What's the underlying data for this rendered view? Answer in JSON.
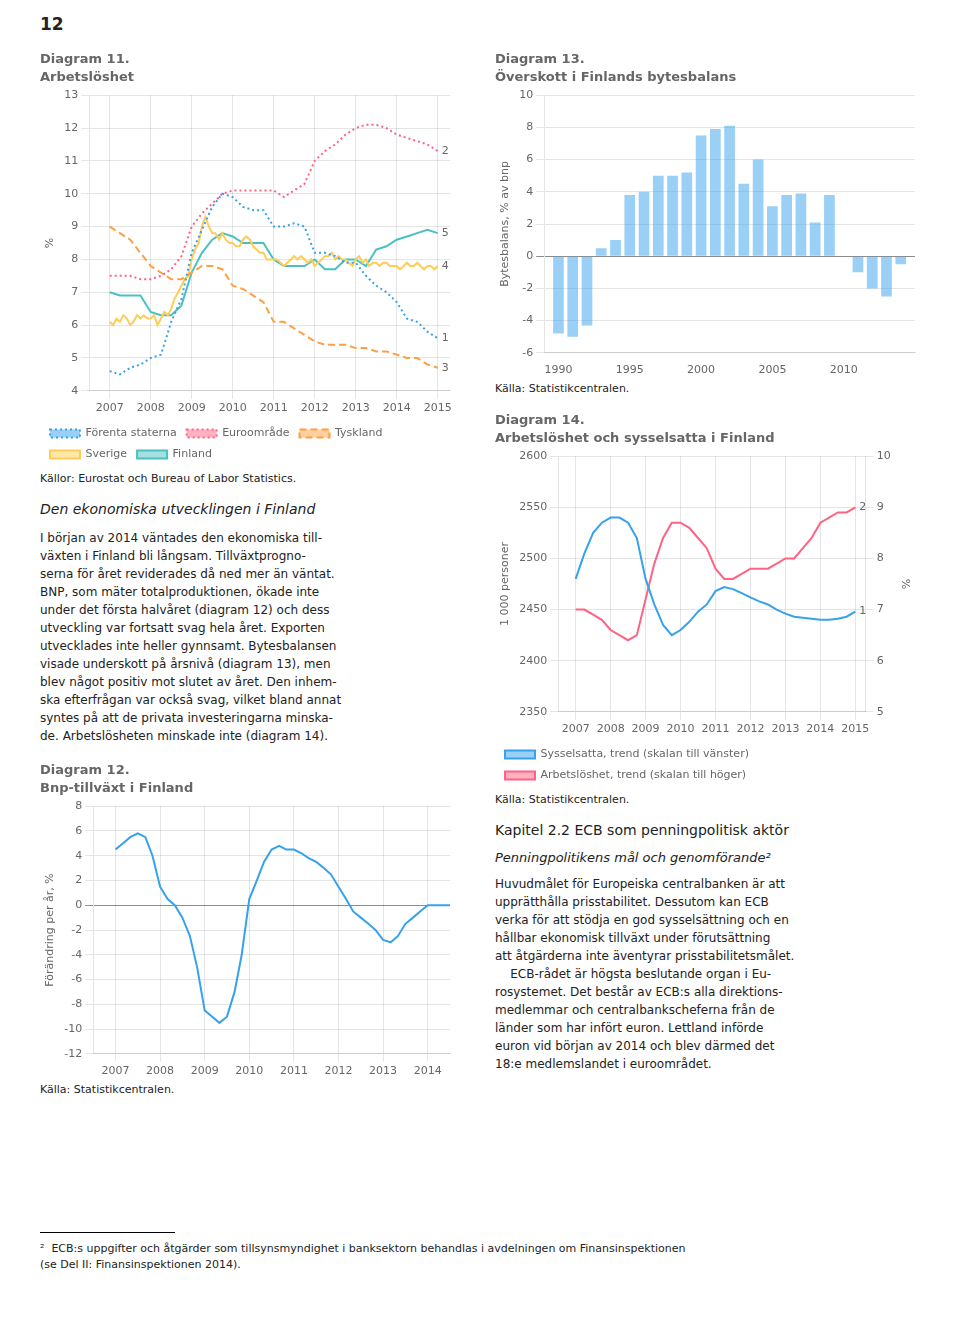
{
  "page": {
    "page_number": "12",
    "section_title": "Den ekonomiska utvecklingen i Finland",
    "body_left": [
      "I början av 2014 väntades den ekonomiska till-",
      "växten i Finland bli långsam. Tillväxtprogno-",
      "serna för året reviderades då ned mer än väntat.",
      "BNP, som mäter totalproduktionen, ökade inte",
      "under det första halvåret (diagram 12) och dess",
      "utveckling var fortsatt svag hela året. Exporten",
      "utvecklades inte heller gynnsamt. Bytesbalansen",
      "visade underskott på årsnivå (diagram 13), men",
      "blev något positiv mot slutet av året. Den inhem-",
      "ska efterfrågan var också svag, vilket bland annat",
      "syntes på att de privata investeringarna minska-",
      "de. Arbetslösheten minskade inte (diagram 14)."
    ],
    "chapter_title": "Kapitel 2.2 ECB som penningpolitisk aktör",
    "italic_title": "Penningpolitikens mål och genomförande²",
    "body_right": [
      "Huvudmålet för Europeiska centralbanken är att",
      "upprätthålla prisstabilitet. Dessutom kan ECB",
      "verka för att stödja en god sysselsättning och en",
      "hållbar ekonomisk tillväxt under förutsättning",
      "att åtgärderna inte äventyrar prisstabilitetsmålet.",
      "    ECB-rådet är högsta beslutande organ i Eu-",
      "rosystemet. Det består av ECB:s alla direktions-",
      "medlemmar och centralbankscheferna från de",
      "länder som har infört euron. Lettland införde",
      "euron vid början av 2014 och blev därmed det",
      "18:e medlemslandet i euroområdet."
    ],
    "footnote": [
      "²  ECB:s uppgifter och åtgärder som tillsynsmyndighet i banksektorn behandlas i avdelningen om Finansinspektionen",
      "(se Del II: Finansinspektionen 2014)."
    ]
  },
  "chart_data": [
    {
      "type": "line",
      "title": "Diagram 11.",
      "subtitle": "Arbetslöshet",
      "ylabel": "%",
      "source": "Källor: Eurostat och Bureau of Labor Statistics.",
      "xlim": [
        2006.5,
        2015.3
      ],
      "xticks": [
        2007,
        2008,
        2009,
        2010,
        2011,
        2012,
        2013,
        2014,
        2015
      ],
      "ylim": [
        4,
        13
      ],
      "yticks": [
        4,
        5,
        6,
        7,
        8,
        9,
        10,
        11,
        12,
        13
      ],
      "grid": true,
      "legend": "bottom",
      "series": [
        {
          "name": "Förenta staterna",
          "line_style": "dotted",
          "x": [
            2007,
            2007.25,
            2007.5,
            2007.75,
            2008,
            2008.25,
            2008.5,
            2008.75,
            2009,
            2009.25,
            2009.5,
            2009.75,
            2010,
            2010.25,
            2010.5,
            2010.75,
            2011,
            2011.25,
            2011.5,
            2011.75,
            2012,
            2012.25,
            2012.5,
            2012.75,
            2013,
            2013.25,
            2013.5,
            2013.75,
            2014,
            2014.25,
            2014.5,
            2014.75,
            2015
          ],
          "values": [
            4.6,
            4.5,
            4.7,
            4.8,
            5.0,
            5.1,
            6.1,
            6.8,
            8.2,
            8.9,
            9.6,
            10.0,
            9.9,
            9.6,
            9.5,
            9.5,
            9.0,
            9.0,
            9.1,
            9.0,
            8.2,
            8.2,
            8.1,
            7.9,
            7.9,
            7.5,
            7.2,
            7.0,
            6.7,
            6.2,
            6.1,
            5.8,
            5.6
          ]
        },
        {
          "name": "Euroområde",
          "line_style": "dotted",
          "x": [
            2007,
            2007.25,
            2007.5,
            2007.75,
            2008,
            2008.25,
            2008.5,
            2008.75,
            2009,
            2009.25,
            2009.5,
            2009.75,
            2010,
            2010.25,
            2010.5,
            2010.75,
            2011,
            2011.25,
            2011.5,
            2011.75,
            2012,
            2012.25,
            2012.5,
            2012.75,
            2013,
            2013.25,
            2013.5,
            2013.75,
            2014,
            2014.25,
            2014.5,
            2014.75,
            2015
          ],
          "values": [
            7.5,
            7.5,
            7.5,
            7.4,
            7.4,
            7.5,
            7.7,
            8.1,
            9.0,
            9.4,
            9.7,
            10.0,
            10.1,
            10.1,
            10.1,
            10.1,
            10.1,
            9.9,
            10.1,
            10.3,
            11.0,
            11.3,
            11.5,
            11.8,
            12.0,
            12.1,
            12.1,
            12.0,
            11.8,
            11.7,
            11.6,
            11.5,
            11.3
          ]
        },
        {
          "name": "Tyskland",
          "line_style": "dashed",
          "x": [
            2007,
            2007.25,
            2007.5,
            2007.75,
            2008,
            2008.25,
            2008.5,
            2008.75,
            2009,
            2009.25,
            2009.5,
            2009.75,
            2010,
            2010.25,
            2010.5,
            2010.75,
            2011,
            2011.25,
            2011.5,
            2011.75,
            2012,
            2012.25,
            2012.5,
            2012.75,
            2013,
            2013.25,
            2013.5,
            2013.75,
            2014,
            2014.25,
            2014.5,
            2014.75,
            2015
          ],
          "values": [
            9.0,
            8.8,
            8.6,
            8.2,
            7.8,
            7.6,
            7.4,
            7.4,
            7.6,
            7.8,
            7.8,
            7.7,
            7.2,
            7.1,
            6.9,
            6.7,
            6.1,
            6.1,
            5.9,
            5.7,
            5.5,
            5.4,
            5.4,
            5.4,
            5.3,
            5.3,
            5.2,
            5.2,
            5.1,
            5.0,
            5.0,
            4.8,
            4.7
          ]
        },
        {
          "name": "Sverige",
          "line_style": "solid",
          "x": [
            2007,
            2007.08,
            2007.17,
            2007.25,
            2007.33,
            2007.42,
            2007.5,
            2007.58,
            2007.67,
            2007.75,
            2007.83,
            2007.92,
            2008,
            2008.08,
            2008.17,
            2008.25,
            2008.33,
            2008.42,
            2008.5,
            2008.58,
            2008.67,
            2008.75,
            2008.83,
            2008.92,
            2009,
            2009.08,
            2009.17,
            2009.25,
            2009.33,
            2009.42,
            2009.5,
            2009.58,
            2009.67,
            2009.75,
            2009.83,
            2009.92,
            2010,
            2010.08,
            2010.17,
            2010.25,
            2010.33,
            2010.42,
            2010.5,
            2010.58,
            2010.67,
            2010.75,
            2010.83,
            2010.92,
            2011,
            2011.08,
            2011.17,
            2011.25,
            2011.33,
            2011.42,
            2011.5,
            2011.58,
            2011.67,
            2011.75,
            2011.83,
            2011.92,
            2012,
            2012.08,
            2012.17,
            2012.25,
            2012.33,
            2012.42,
            2012.5,
            2012.58,
            2012.67,
            2012.75,
            2012.83,
            2012.92,
            2013,
            2013.08,
            2013.17,
            2013.25,
            2013.33,
            2013.42,
            2013.5,
            2013.58,
            2013.67,
            2013.75,
            2013.83,
            2013.92,
            2014,
            2014.08,
            2014.17,
            2014.25,
            2014.33,
            2014.42,
            2014.5,
            2014.58,
            2014.67,
            2014.75,
            2014.83,
            2014.92,
            2015
          ],
          "values": [
            6.1,
            6.0,
            6.2,
            6.1,
            6.3,
            6.2,
            6.0,
            6.1,
            6.3,
            6.2,
            6.3,
            6.2,
            6.2,
            6.3,
            6.0,
            6.2,
            6.4,
            6.3,
            6.5,
            6.8,
            7.0,
            7.2,
            7.4,
            7.5,
            8.0,
            8.3,
            8.5,
            9.0,
            9.3,
            9.0,
            8.8,
            8.8,
            8.6,
            8.8,
            8.6,
            8.5,
            8.5,
            8.4,
            8.4,
            8.6,
            8.7,
            8.6,
            8.4,
            8.3,
            8.2,
            8.2,
            8.0,
            8.0,
            8.0,
            8.0,
            7.9,
            7.8,
            7.9,
            8.0,
            8.1,
            8.0,
            8.1,
            8.0,
            7.9,
            8.0,
            7.8,
            7.9,
            8.0,
            8.1,
            8.1,
            8.2,
            8.0,
            8.1,
            8.0,
            8.0,
            7.9,
            7.8,
            8.0,
            8.1,
            7.9,
            8.0,
            7.8,
            7.9,
            7.9,
            7.8,
            7.9,
            7.9,
            7.8,
            7.8,
            7.8,
            7.7,
            7.8,
            7.9,
            7.8,
            7.8,
            7.9,
            7.8,
            7.7,
            7.8,
            7.8,
            7.7,
            7.8
          ]
        },
        {
          "name": "Finland",
          "line_style": "solid",
          "x": [
            2007,
            2007.25,
            2007.5,
            2007.75,
            2008,
            2008.25,
            2008.5,
            2008.75,
            2009,
            2009.25,
            2009.5,
            2009.75,
            2010,
            2010.25,
            2010.5,
            2010.75,
            2011,
            2011.25,
            2011.5,
            2011.75,
            2012,
            2012.25,
            2012.5,
            2012.75,
            2013,
            2013.25,
            2013.5,
            2013.75,
            2014,
            2014.25,
            2014.5,
            2014.75,
            2015
          ],
          "values": [
            7.0,
            6.9,
            6.9,
            6.9,
            6.4,
            6.3,
            6.3,
            6.6,
            7.6,
            8.2,
            8.6,
            8.8,
            8.7,
            8.5,
            8.5,
            8.5,
            8.0,
            7.8,
            7.8,
            7.8,
            8.0,
            7.7,
            7.7,
            8.0,
            8.0,
            7.8,
            8.3,
            8.4,
            8.6,
            8.7,
            8.8,
            8.9,
            8.8
          ]
        }
      ],
      "annotations": [
        {
          "text": "1",
          "series": "Förenta staterna"
        },
        {
          "text": "2",
          "series": "Euroområde"
        },
        {
          "text": "3",
          "series": "Tyskland"
        },
        {
          "text": "4",
          "series": "Sverige"
        },
        {
          "text": "5",
          "series": "Finland"
        }
      ]
    },
    {
      "type": "bar",
      "title": "Diagram 13.",
      "subtitle": "Överskott i Finlands bytesbalans",
      "ylabel": "Bytesbalans, % av bnp",
      "source": "Källa: Statistikcentralen.",
      "x": [
        1990,
        1991,
        1992,
        1993,
        1994,
        1995,
        1996,
        1997,
        1998,
        1999,
        2000,
        2001,
        2002,
        2003,
        2004,
        2005,
        2006,
        2007,
        2008,
        2009,
        2010,
        2011,
        2012,
        2013,
        2014
      ],
      "values": [
        -4.8,
        -5.0,
        -4.3,
        0.5,
        1.0,
        3.8,
        4.0,
        5.0,
        5.0,
        5.2,
        7.5,
        7.9,
        8.1,
        4.5,
        6.0,
        3.1,
        3.8,
        3.9,
        2.1,
        3.8,
        0.0,
        -1.0,
        -2.0,
        -2.5,
        -0.5
      ],
      "xlim": [
        1989,
        2015
      ],
      "xticks": [
        1990,
        1995,
        2000,
        2005,
        2010
      ],
      "ylim": [
        -6,
        10
      ],
      "yticks": [
        -6,
        -4,
        -2,
        0,
        2,
        4,
        6,
        8,
        10
      ],
      "grid": "y"
    },
    {
      "type": "line",
      "title": "Diagram 14.",
      "subtitle": "Arbetslöshet och sysselsatta i Finland",
      "ylabel": "1 000 personer",
      "y2label": "%",
      "source": "Källa: Statistikcentralen.",
      "xlim": [
        2006.5,
        2015.3
      ],
      "xticks": [
        2007,
        2008,
        2009,
        2010,
        2011,
        2012,
        2013,
        2014,
        2015
      ],
      "ylim": [
        2350,
        2600
      ],
      "yticks": [
        2350,
        2400,
        2450,
        2500,
        2550,
        2600
      ],
      "y2lim": [
        5,
        10
      ],
      "y2ticks": [
        5,
        6,
        7,
        8,
        9,
        10
      ],
      "grid": true,
      "legend": "bottom",
      "series": [
        {
          "name": "Sysselsatta, trend (skalan till vänster)",
          "x": [
            2007,
            2007.25,
            2007.5,
            2007.75,
            2008,
            2008.25,
            2008.5,
            2008.75,
            2009,
            2009.25,
            2009.5,
            2009.75,
            2010,
            2010.25,
            2010.5,
            2010.75,
            2011,
            2011.25,
            2011.5,
            2011.75,
            2012,
            2012.25,
            2012.5,
            2012.75,
            2013,
            2013.25,
            2013.5,
            2013.75,
            2014,
            2014.25,
            2014.5,
            2014.75,
            2015
          ],
          "values": [
            2480,
            2505,
            2525,
            2535,
            2540,
            2540,
            2535,
            2520,
            2480,
            2455,
            2435,
            2425,
            2430,
            2438,
            2448,
            2455,
            2468,
            2472,
            2470,
            2466,
            2462,
            2458,
            2455,
            2450,
            2446,
            2443,
            2442,
            2441,
            2440,
            2440,
            2441,
            2443,
            2448
          ]
        },
        {
          "name": "Arbetslöshet, trend (skalan till höger)",
          "axis": "y2",
          "x": [
            2007,
            2007.25,
            2007.5,
            2007.75,
            2008,
            2008.25,
            2008.5,
            2008.75,
            2009,
            2009.25,
            2009.5,
            2009.75,
            2010,
            2010.25,
            2010.5,
            2010.75,
            2011,
            2011.25,
            2011.5,
            2011.75,
            2012,
            2012.25,
            2012.5,
            2012.75,
            2013,
            2013.25,
            2013.5,
            2013.75,
            2014,
            2014.25,
            2014.5,
            2014.75,
            2015
          ],
          "values": [
            7.0,
            7.0,
            6.9,
            6.8,
            6.6,
            6.5,
            6.4,
            6.5,
            7.2,
            7.9,
            8.4,
            8.7,
            8.7,
            8.6,
            8.4,
            8.2,
            7.8,
            7.6,
            7.6,
            7.7,
            7.8,
            7.8,
            7.8,
            7.9,
            8.0,
            8.0,
            8.2,
            8.4,
            8.7,
            8.8,
            8.9,
            8.9,
            9.0
          ]
        }
      ],
      "annotations": [
        {
          "text": "1",
          "series": "Sysselsatta, trend (skalan till vänster)"
        },
        {
          "text": "2",
          "series": "Arbetslöshet, trend (skalan till höger)"
        }
      ]
    },
    {
      "type": "line",
      "title": "Diagram 12.",
      "subtitle": "Bnp-tillväxt i Finland",
      "ylabel": "Förändring per år, %",
      "source": "Källa: Statistikcentralen.",
      "xlim": [
        2006.5,
        2014.5
      ],
      "xticks": [
        2007,
        2008,
        2009,
        2010,
        2011,
        2012,
        2013,
        2014
      ],
      "ylim": [
        -12,
        8
      ],
      "yticks": [
        -12,
        -10,
        -8,
        -6,
        -4,
        -2,
        0,
        2,
        4,
        6,
        8
      ],
      "grid": true,
      "x": [
        2007,
        2007.17,
        2007.33,
        2007.5,
        2007.67,
        2007.83,
        2008,
        2008.17,
        2008.33,
        2008.5,
        2008.67,
        2008.83,
        2009,
        2009.17,
        2009.33,
        2009.5,
        2009.67,
        2009.83,
        2010,
        2010.17,
        2010.33,
        2010.5,
        2010.67,
        2010.83,
        2011,
        2011.17,
        2011.33,
        2011.5,
        2011.67,
        2011.83,
        2012,
        2012.17,
        2012.33,
        2012.5,
        2012.67,
        2012.83,
        2013,
        2013.17,
        2013.33,
        2013.5,
        2013.67,
        2013.83,
        2014,
        2014.17,
        2014.33,
        2014.5
      ],
      "values": [
        4.5,
        5.0,
        5.5,
        5.8,
        5.5,
        4.0,
        1.5,
        0.5,
        0.0,
        -1.0,
        -2.5,
        -5.0,
        -8.5,
        -9.0,
        -9.5,
        -9.0,
        -7.0,
        -4.0,
        0.5,
        2.0,
        3.5,
        4.5,
        4.8,
        4.5,
        4.5,
        4.2,
        3.8,
        3.5,
        3.0,
        2.5,
        1.5,
        0.5,
        -0.5,
        -1.0,
        -1.5,
        -2.0,
        -2.8,
        -3.0,
        -2.5,
        -1.5,
        -1.0,
        -0.5,
        0.0,
        0.0,
        0.0,
        0.0
      ]
    }
  ]
}
